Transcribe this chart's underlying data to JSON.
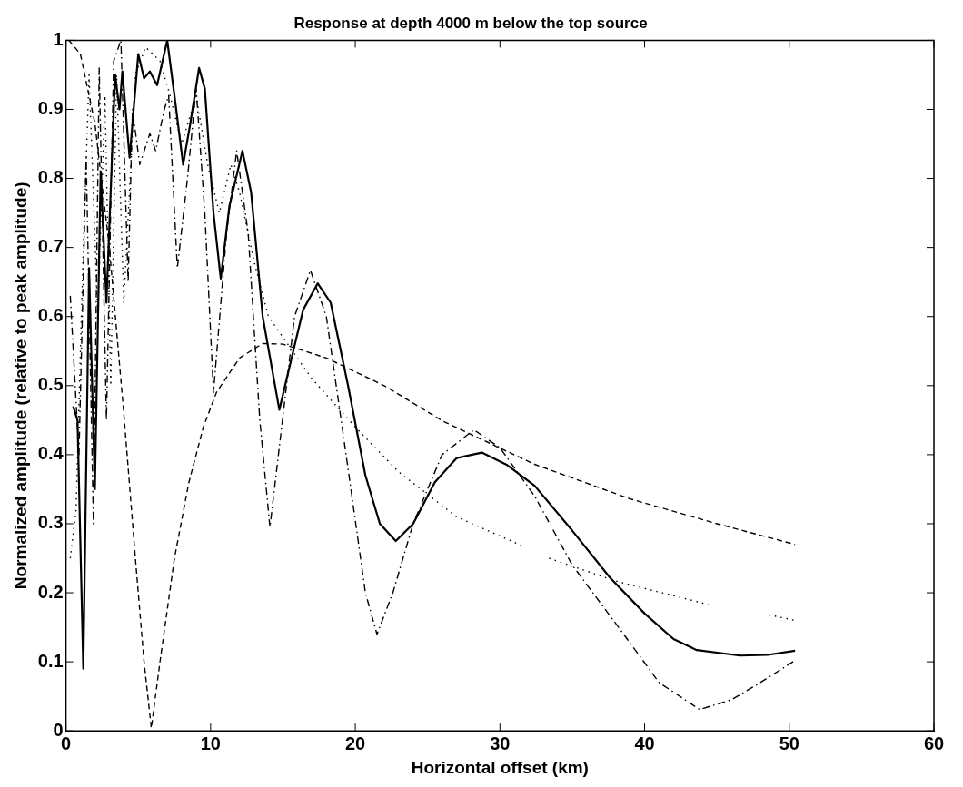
{
  "chart_data": {
    "type": "line",
    "title": "Response at depth 4000 m below the top source",
    "xlabel": "Horizontal offset (km)",
    "ylabel": "Normalized amplitude (relative to peak amplitude)",
    "xlim": [
      0,
      60
    ],
    "xticks": [
      0,
      10,
      20,
      30,
      40,
      50,
      60
    ],
    "ylim": [
      0,
      1
    ],
    "yticks": [
      0,
      0.1,
      0.2,
      0.3,
      0.4,
      0.5,
      0.6,
      0.7,
      0.8,
      0.9,
      1
    ],
    "grid": false,
    "legend": false,
    "marker": "none",
    "series": [
      {
        "color": "#000000",
        "line_style": "solid",
        "x": [
          0.5,
          0.8,
          1.2,
          1.6,
          2.0,
          2.4,
          2.8,
          3.4,
          3.7,
          3.9,
          4.4,
          5.0,
          5.4,
          5.8,
          6.3,
          7.0,
          7.5,
          8.1,
          8.6,
          9.2,
          9.6,
          10.2,
          10.7,
          11.3,
          12.2,
          12.8,
          13.6,
          14.75,
          15.6,
          16.4,
          17.4,
          18.3,
          19.5,
          20.7,
          21.7,
          22.8,
          24,
          25.5,
          27,
          28.75,
          30.5,
          32.4,
          35,
          37.6,
          40,
          42,
          43.6,
          46.6,
          48.5,
          50.4
        ],
        "values": [
          0.47,
          0.45,
          0.09,
          0.67,
          0.35,
          0.81,
          0.62,
          0.95,
          0.9,
          0.955,
          0.83,
          0.98,
          0.945,
          0.955,
          0.935,
          1.0,
          0.92,
          0.82,
          0.88,
          0.96,
          0.93,
          0.75,
          0.655,
          0.76,
          0.84,
          0.78,
          0.6,
          0.465,
          0.54,
          0.61,
          0.648,
          0.62,
          0.5,
          0.37,
          0.3,
          0.275,
          0.3,
          0.36,
          0.395,
          0.403,
          0.385,
          0.355,
          0.29,
          0.222,
          0.17,
          0.133,
          0.117,
          0.109,
          0.11,
          0.116
        ]
      },
      {
        "color": "#000000",
        "line_style": "dashdot",
        "x": [
          0.3,
          0.9,
          1.4,
          1.9,
          2.3,
          2.8,
          3.3,
          3.8,
          4.3,
          4.6,
          5.1,
          5.8,
          6.2,
          6.8,
          7.1,
          7.7,
          8.4,
          9.0,
          9.6,
          10.2,
          11.1,
          11.8,
          12.6,
          13.4,
          14.1,
          14.8,
          15.8,
          16.9,
          18,
          19.5,
          20.7,
          21.5,
          22.6,
          24,
          26,
          28.2,
          30,
          32.4,
          35,
          38.2,
          41,
          43.8,
          46,
          48,
          50.4
        ],
        "values": [
          0.63,
          0.4,
          0.83,
          0.3,
          0.96,
          0.45,
          0.97,
          1.0,
          0.65,
          0.9,
          0.82,
          0.865,
          0.84,
          0.9,
          0.92,
          0.67,
          0.8,
          0.93,
          0.75,
          0.49,
          0.72,
          0.84,
          0.72,
          0.45,
          0.295,
          0.42,
          0.6,
          0.667,
          0.6,
          0.38,
          0.2,
          0.14,
          0.2,
          0.3,
          0.4,
          0.436,
          0.41,
          0.34,
          0.24,
          0.15,
          0.07,
          0.031,
          0.045,
          0.07,
          0.102
        ]
      },
      {
        "color": "#000000",
        "line_style": "dotted",
        "x": [
          0.3,
          0.7,
          1.2,
          1.6,
          2.2,
          2.7,
          3.1,
          3.5,
          4.0,
          4.8,
          5.5,
          6.5,
          7.2,
          8.0,
          9.0,
          9.8,
          10.6,
          11.4,
          12,
          13,
          14,
          15,
          17,
          20,
          23,
          27,
          31.75,
          32.5,
          33.4,
          38,
          44.4,
          46,
          48.6,
          50.4
        ],
        "values": [
          0.25,
          0.32,
          0.7,
          0.95,
          0.6,
          0.92,
          0.5,
          0.95,
          0.62,
          0.95,
          0.99,
          0.97,
          0.92,
          0.85,
          0.92,
          0.82,
          0.75,
          0.82,
          0.78,
          0.68,
          0.6,
          0.57,
          0.51,
          0.44,
          0.375,
          0.31,
          0.266,
          null,
          0.25,
          0.217,
          0.183,
          null,
          0.168,
          0.16
        ]
      },
      {
        "color": "#000000",
        "line_style": "dashed",
        "x": [
          0.2,
          1,
          2,
          3,
          4,
          4.8,
          5.4,
          5.9,
          6.5,
          7.5,
          8.5,
          9.5,
          10.4,
          12,
          13.6,
          15,
          18,
          22,
          26.1,
          32.4,
          39,
          45,
          50.4
        ],
        "values": [
          1.0,
          0.98,
          0.88,
          0.7,
          0.46,
          0.25,
          0.1,
          0.004,
          0.1,
          0.25,
          0.36,
          0.44,
          0.49,
          0.54,
          0.561,
          0.56,
          0.54,
          0.5,
          0.448,
          0.386,
          0.336,
          0.3,
          0.27
        ]
      }
    ]
  }
}
